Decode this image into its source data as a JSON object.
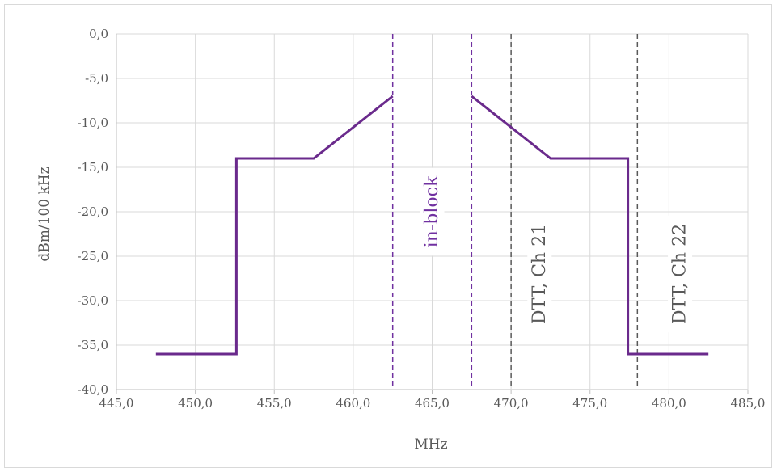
{
  "chart_data": {
    "type": "line",
    "title": "",
    "xlabel": "MHz",
    "ylabel": "dBm/100 kHz",
    "xlim": [
      445,
      485
    ],
    "ylim": [
      -40,
      0
    ],
    "x_ticks": [
      "445,0",
      "450,0",
      "455,0",
      "460,0",
      "465,0",
      "470,0",
      "475,0",
      "480,0",
      "485,0"
    ],
    "y_ticks": [
      "0,0",
      "-5,0",
      "-10,0",
      "-15,0",
      "-20,0",
      "-25,0",
      "-30,0",
      "-35,0",
      "-40,0"
    ],
    "grid": true,
    "series": [
      {
        "name": "",
        "color": "#6a2a8c",
        "segments": [
          {
            "x": [
              447.5,
              452.6,
              452.6,
              457.5,
              462.5
            ],
            "y": [
              -36,
              -36,
              -14,
              -14,
              -7
            ]
          },
          {
            "x": [
              467.5,
              472.5,
              477.4,
              477.4,
              482.5
            ],
            "y": [
              -7,
              -14,
              -14,
              -36,
              -36
            ]
          }
        ]
      }
    ],
    "markers": [
      {
        "x": 462.5,
        "color": "#7030a0",
        "style": "dashed"
      },
      {
        "x": 467.5,
        "color": "#7030a0",
        "style": "dashed"
      },
      {
        "x": 470,
        "color": "#595959",
        "style": "dashed"
      },
      {
        "x": 478,
        "color": "#595959",
        "style": "dashed"
      }
    ],
    "annotations": [
      {
        "text": "in-block",
        "x": 465,
        "y": -20,
        "color": "#7030a0"
      },
      {
        "text": "DTT, Ch 21",
        "x": 471.8,
        "y": -27,
        "color": "#595959"
      },
      {
        "text": "DTT, Ch 22",
        "x": 480.7,
        "y": -27,
        "color": "#595959"
      }
    ]
  }
}
